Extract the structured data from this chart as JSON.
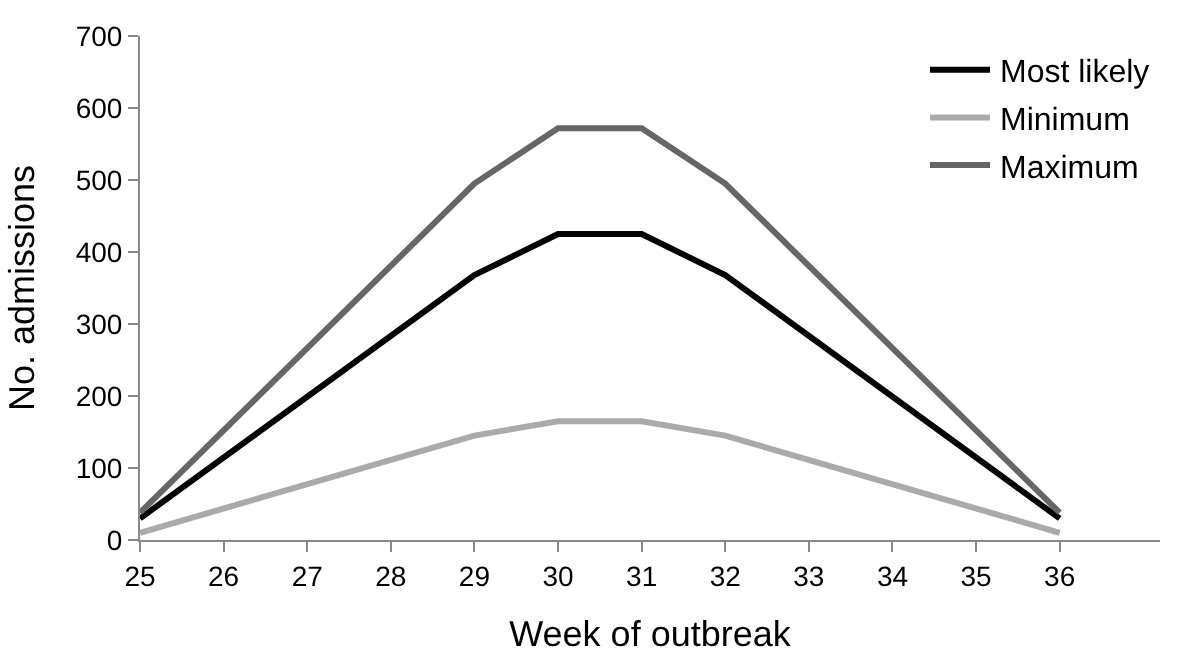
{
  "chart_data": {
    "type": "line",
    "xlabel": "Week of outbreak",
    "ylabel": "No. admissions",
    "x": [
      25,
      29,
      30,
      31,
      32,
      36
    ],
    "series": [
      {
        "name": "Most likely",
        "color": "#000000",
        "values": [
          30,
          368,
          425,
          425,
          368,
          30
        ]
      },
      {
        "name": "Minimum",
        "color": "#aaaaaa",
        "values": [
          10,
          145,
          165,
          165,
          145,
          10
        ]
      },
      {
        "name": "Maximum",
        "color": "#666666",
        "values": [
          38,
          495,
          572,
          572,
          495,
          38
        ]
      }
    ],
    "xlim": [
      25,
      37.2
    ],
    "xticks": [
      25,
      26,
      27,
      28,
      29,
      30,
      31,
      32,
      33,
      34,
      35,
      36
    ],
    "ylim": [
      0,
      700
    ],
    "yticks": [
      0,
      100,
      200,
      300,
      400,
      500,
      600,
      700
    ],
    "grid": false,
    "legend": "top right",
    "marker": "none",
    "line_style": "solid"
  }
}
